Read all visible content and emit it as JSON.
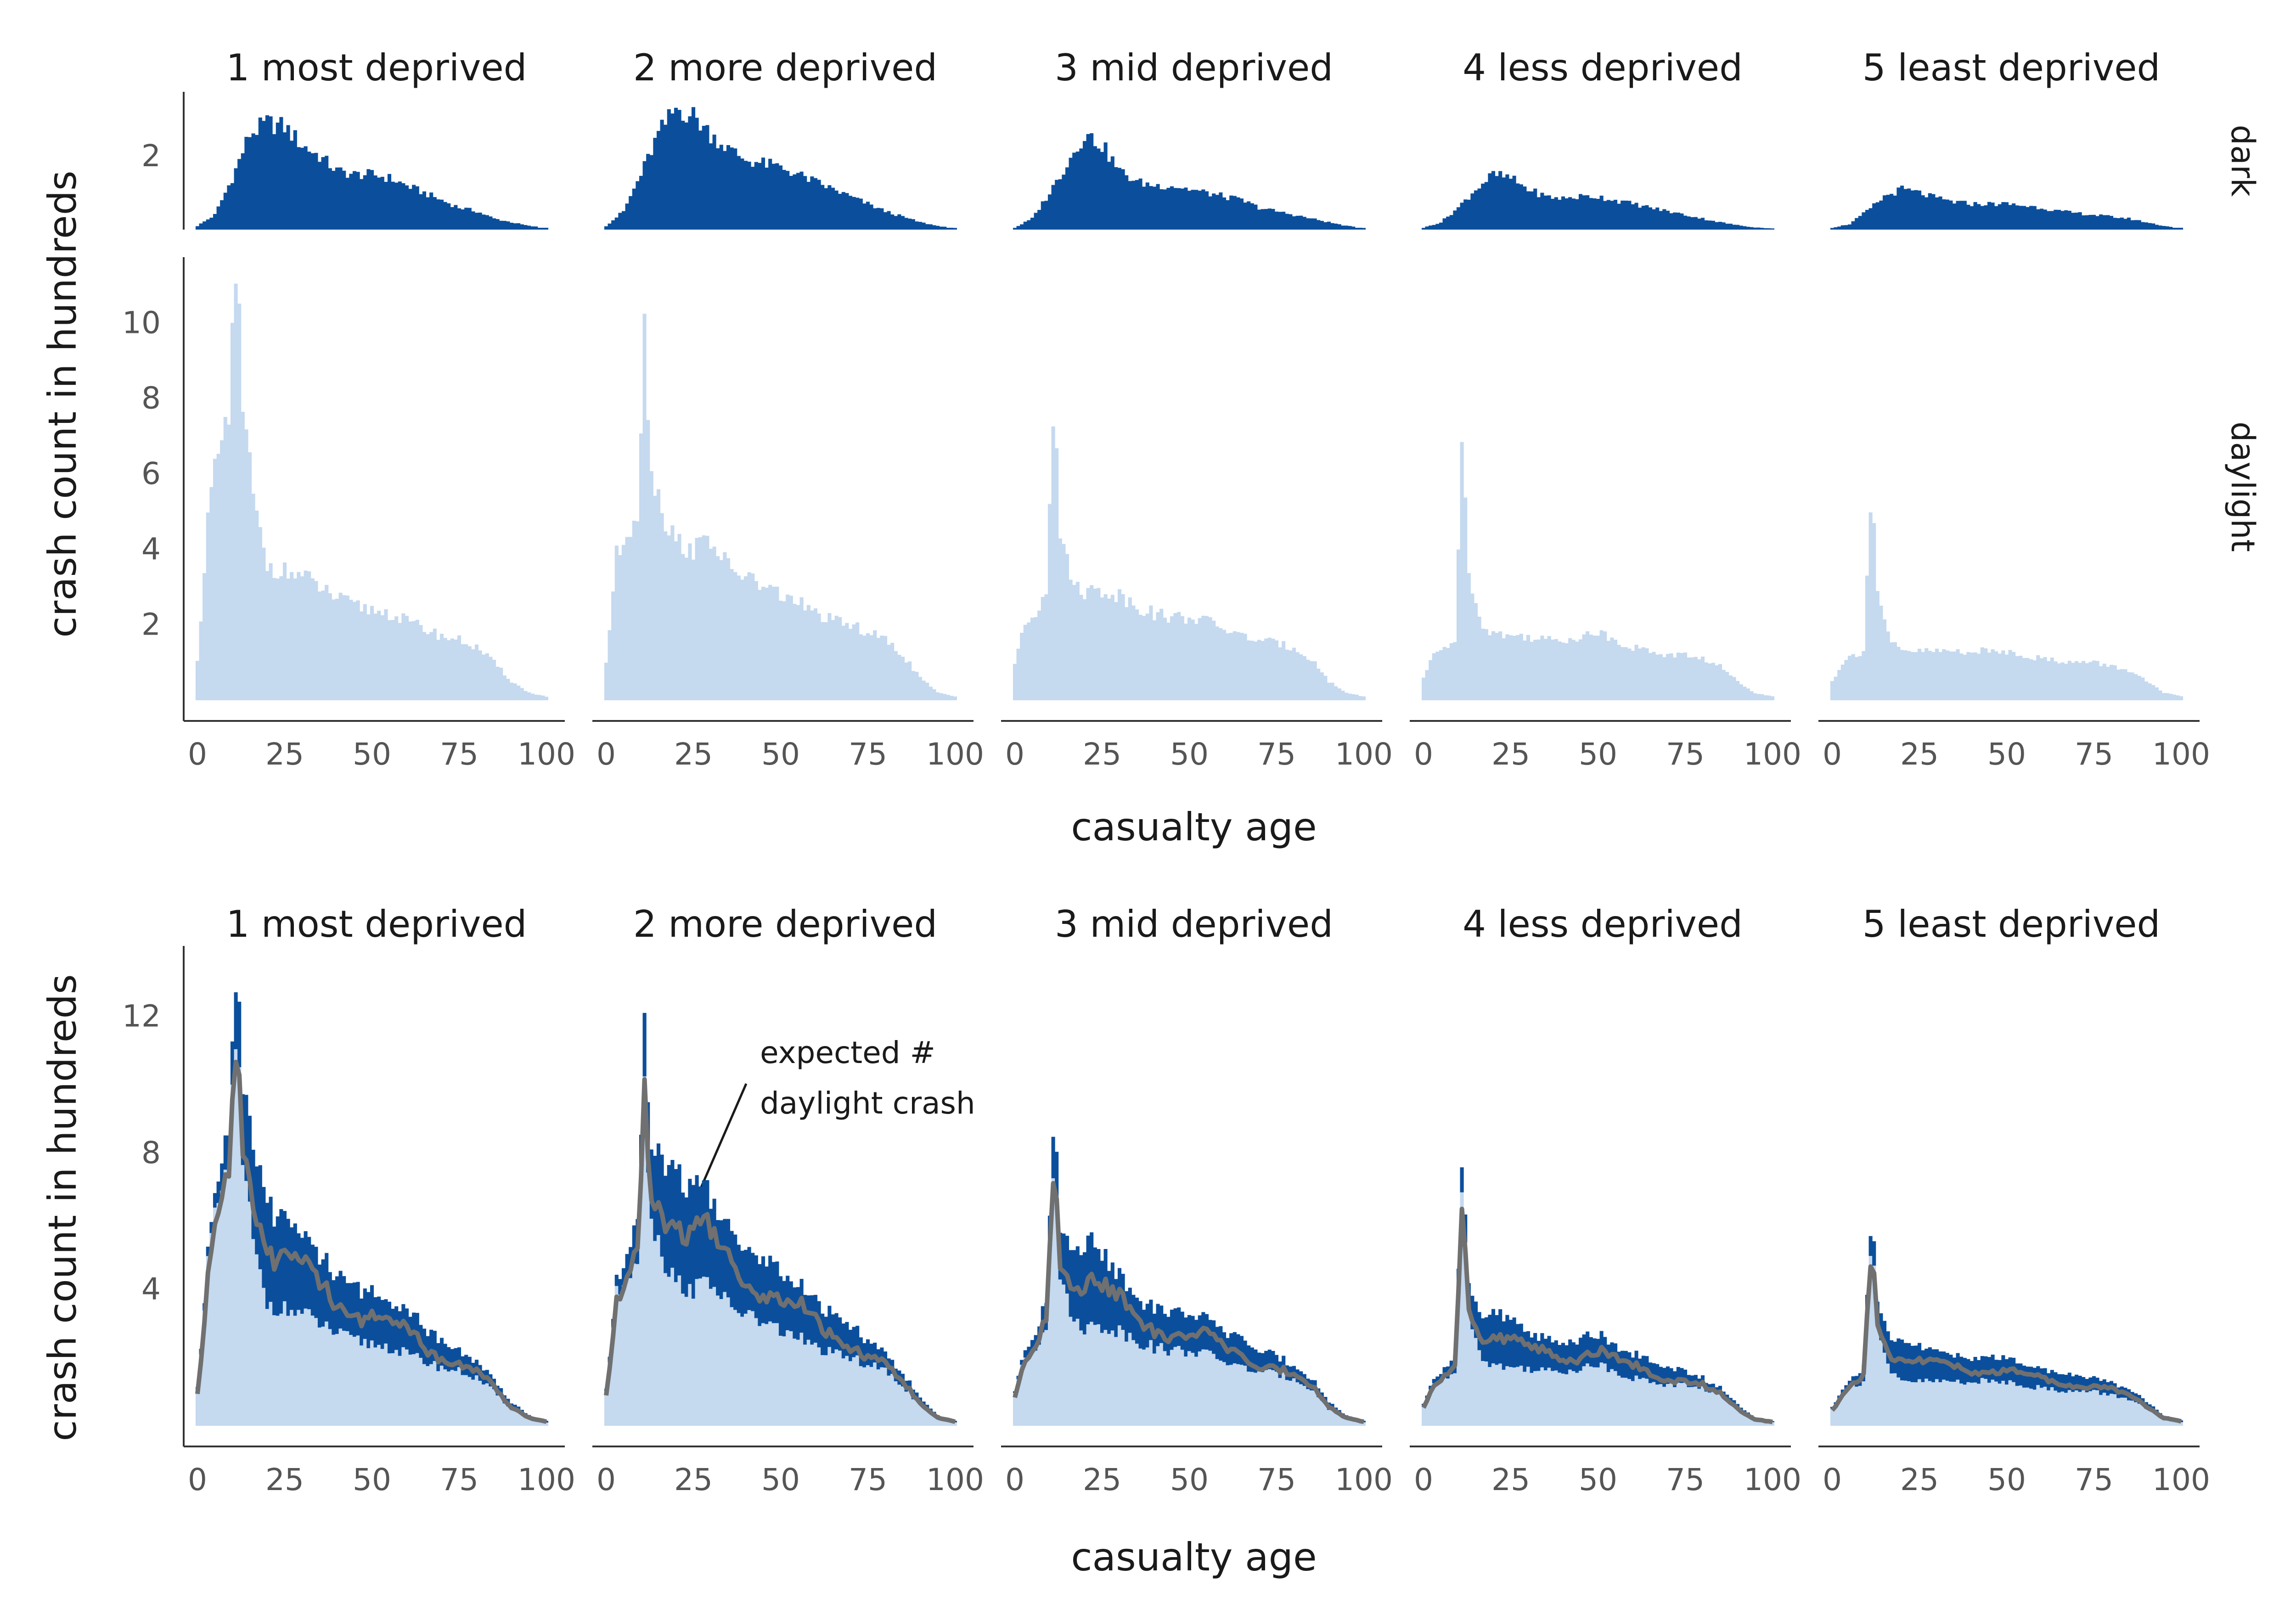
{
  "chart_data": [
    {
      "type": "bar",
      "panels": [
        "1 most deprived",
        "2 more deprived",
        "3 mid deprived",
        "4 less deprived",
        "5 least deprived"
      ],
      "rows": [
        "dark",
        "daylight"
      ],
      "xlabel": "casualty age",
      "ylabel": "crash count in hundreds",
      "xlim": [
        0,
        100
      ],
      "xticks": [
        "0",
        "25",
        "50",
        "75",
        "100"
      ],
      "ylim_dark": [
        0,
        3.5
      ],
      "yticks_dark": [
        "2"
      ],
      "ylim_daylight": [
        0,
        11.5
      ],
      "yticks_daylight": [
        "2",
        "4",
        "6",
        "8",
        "10"
      ],
      "series": [
        {
          "name": "dark",
          "color": "#0b4f9c",
          "peaks": [
            [
              [
                0,
                0.1
              ],
              [
                5,
                0.4
              ],
              [
                10,
                1.4
              ],
              [
                15,
                2.6
              ],
              [
                20,
                2.9
              ],
              [
                25,
                2.8
              ],
              [
                30,
                2.3
              ],
              [
                35,
                2.0
              ],
              [
                40,
                1.6
              ],
              [
                45,
                1.5
              ],
              [
                50,
                1.5
              ],
              [
                55,
                1.4
              ],
              [
                60,
                1.2
              ],
              [
                65,
                1.0
              ],
              [
                70,
                0.8
              ],
              [
                75,
                0.6
              ],
              [
                80,
                0.5
              ],
              [
                85,
                0.3
              ],
              [
                90,
                0.2
              ],
              [
                95,
                0.1
              ],
              [
                100,
                0.05
              ]
            ],
            [
              [
                0,
                0.1
              ],
              [
                5,
                0.5
              ],
              [
                10,
                1.5
              ],
              [
                15,
                2.6
              ],
              [
                20,
                3.3
              ],
              [
                25,
                3.1
              ],
              [
                30,
                2.6
              ],
              [
                35,
                2.2
              ],
              [
                40,
                1.9
              ],
              [
                45,
                1.8
              ],
              [
                50,
                1.7
              ],
              [
                55,
                1.5
              ],
              [
                60,
                1.3
              ],
              [
                65,
                1.1
              ],
              [
                70,
                0.9
              ],
              [
                75,
                0.7
              ],
              [
                80,
                0.5
              ],
              [
                85,
                0.35
              ],
              [
                90,
                0.2
              ],
              [
                95,
                0.1
              ],
              [
                100,
                0.05
              ]
            ],
            [
              [
                0,
                0.05
              ],
              [
                5,
                0.3
              ],
              [
                10,
                1.0
              ],
              [
                15,
                1.8
              ],
              [
                20,
                2.6
              ],
              [
                25,
                2.3
              ],
              [
                30,
                1.6
              ],
              [
                35,
                1.3
              ],
              [
                40,
                1.2
              ],
              [
                45,
                1.2
              ],
              [
                50,
                1.1
              ],
              [
                55,
                1.0
              ],
              [
                60,
                0.9
              ],
              [
                65,
                0.8
              ],
              [
                70,
                0.6
              ],
              [
                75,
                0.5
              ],
              [
                80,
                0.4
              ],
              [
                85,
                0.3
              ],
              [
                90,
                0.2
              ],
              [
                95,
                0.1
              ],
              [
                100,
                0.05
              ]
            ],
            [
              [
                0,
                0.05
              ],
              [
                5,
                0.2
              ],
              [
                10,
                0.6
              ],
              [
                15,
                1.1
              ],
              [
                20,
                1.5
              ],
              [
                25,
                1.4
              ],
              [
                30,
                1.1
              ],
              [
                35,
                0.9
              ],
              [
                40,
                0.85
              ],
              [
                45,
                0.9
              ],
              [
                50,
                0.9
              ],
              [
                55,
                0.8
              ],
              [
                60,
                0.7
              ],
              [
                65,
                0.6
              ],
              [
                70,
                0.5
              ],
              [
                75,
                0.4
              ],
              [
                80,
                0.3
              ],
              [
                85,
                0.2
              ],
              [
                90,
                0.12
              ],
              [
                95,
                0.06
              ],
              [
                100,
                0.03
              ]
            ],
            [
              [
                0,
                0.05
              ],
              [
                5,
                0.15
              ],
              [
                10,
                0.5
              ],
              [
                15,
                0.9
              ],
              [
                20,
                1.1
              ],
              [
                25,
                1.0
              ],
              [
                30,
                0.85
              ],
              [
                35,
                0.75
              ],
              [
                40,
                0.7
              ],
              [
                45,
                0.7
              ],
              [
                50,
                0.7
              ],
              [
                55,
                0.65
              ],
              [
                60,
                0.6
              ],
              [
                65,
                0.5
              ],
              [
                70,
                0.45
              ],
              [
                75,
                0.4
              ],
              [
                80,
                0.35
              ],
              [
                85,
                0.3
              ],
              [
                90,
                0.2
              ],
              [
                95,
                0.1
              ],
              [
                100,
                0.05
              ]
            ]
          ]
        },
        {
          "name": "daylight",
          "color": "#c5d9ef",
          "peaks": [
            [
              [
                0,
                1.0
              ],
              [
                3,
                4.8
              ],
              [
                6,
                6.5
              ],
              [
                9,
                7.2
              ],
              [
                10,
                10.0
              ],
              [
                11,
                11.3
              ],
              [
                12,
                10.0
              ],
              [
                13,
                7.5
              ],
              [
                15,
                6.2
              ],
              [
                17,
                4.8
              ],
              [
                20,
                3.6
              ],
              [
                25,
                3.4
              ],
              [
                30,
                3.3
              ],
              [
                35,
                3.0
              ],
              [
                40,
                2.7
              ],
              [
                45,
                2.5
              ],
              [
                50,
                2.4
              ],
              [
                55,
                2.3
              ],
              [
                60,
                2.1
              ],
              [
                65,
                1.9
              ],
              [
                70,
                1.7
              ],
              [
                75,
                1.6
              ],
              [
                80,
                1.4
              ],
              [
                85,
                1.0
              ],
              [
                90,
                0.5
              ],
              [
                95,
                0.2
              ],
              [
                100,
                0.1
              ]
            ],
            [
              [
                0,
                1.0
              ],
              [
                3,
                3.8
              ],
              [
                6,
                4.5
              ],
              [
                9,
                5.0
              ],
              [
                10,
                7.5
              ],
              [
                11,
                9.8
              ],
              [
                12,
                8.0
              ],
              [
                13,
                6.0
              ],
              [
                15,
                5.5
              ],
              [
                17,
                4.8
              ],
              [
                20,
                4.2
              ],
              [
                25,
                4.0
              ],
              [
                30,
                4.3
              ],
              [
                35,
                3.5
              ],
              [
                40,
                3.3
              ],
              [
                45,
                3.0
              ],
              [
                50,
                2.8
              ],
              [
                55,
                2.6
              ],
              [
                60,
                2.3
              ],
              [
                65,
                2.1
              ],
              [
                70,
                2.0
              ],
              [
                75,
                1.8
              ],
              [
                80,
                1.6
              ],
              [
                85,
                1.2
              ],
              [
                90,
                0.6
              ],
              [
                95,
                0.2
              ],
              [
                100,
                0.1
              ]
            ],
            [
              [
                0,
                1.0
              ],
              [
                3,
                2.0
              ],
              [
                6,
                2.3
              ],
              [
                9,
                3.0
              ],
              [
                10,
                5.5
              ],
              [
                11,
                7.8
              ],
              [
                12,
                7.0
              ],
              [
                13,
                4.5
              ],
              [
                15,
                3.6
              ],
              [
                17,
                3.1
              ],
              [
                20,
                2.9
              ],
              [
                25,
                2.9
              ],
              [
                30,
                2.8
              ],
              [
                35,
                2.5
              ],
              [
                40,
                2.3
              ],
              [
                45,
                2.2
              ],
              [
                50,
                2.2
              ],
              [
                55,
                2.1
              ],
              [
                60,
                1.9
              ],
              [
                65,
                1.7
              ],
              [
                70,
                1.6
              ],
              [
                75,
                1.5
              ],
              [
                80,
                1.4
              ],
              [
                85,
                1.1
              ],
              [
                90,
                0.5
              ],
              [
                95,
                0.2
              ],
              [
                100,
                0.1
              ]
            ],
            [
              [
                0,
                0.6
              ],
              [
                3,
                1.2
              ],
              [
                6,
                1.4
              ],
              [
                9,
                1.6
              ],
              [
                10,
                4.0
              ],
              [
                11,
                6.4
              ],
              [
                12,
                5.8
              ],
              [
                13,
                3.6
              ],
              [
                15,
                2.5
              ],
              [
                17,
                2.0
              ],
              [
                20,
                1.8
              ],
              [
                25,
                1.7
              ],
              [
                30,
                1.7
              ],
              [
                35,
                1.6
              ],
              [
                40,
                1.6
              ],
              [
                45,
                1.7
              ],
              [
                50,
                1.8
              ],
              [
                55,
                1.6
              ],
              [
                60,
                1.4
              ],
              [
                65,
                1.3
              ],
              [
                70,
                1.2
              ],
              [
                75,
                1.2
              ],
              [
                80,
                1.1
              ],
              [
                85,
                0.9
              ],
              [
                90,
                0.5
              ],
              [
                95,
                0.2
              ],
              [
                100,
                0.1
              ]
            ],
            [
              [
                0,
                0.5
              ],
              [
                3,
                1.0
              ],
              [
                6,
                1.2
              ],
              [
                9,
                1.3
              ],
              [
                10,
                3.5
              ],
              [
                11,
                4.9
              ],
              [
                12,
                4.6
              ],
              [
                13,
                3.0
              ],
              [
                15,
                2.0
              ],
              [
                17,
                1.5
              ],
              [
                20,
                1.3
              ],
              [
                25,
                1.3
              ],
              [
                30,
                1.3
              ],
              [
                35,
                1.3
              ],
              [
                40,
                1.3
              ],
              [
                45,
                1.3
              ],
              [
                50,
                1.3
              ],
              [
                55,
                1.2
              ],
              [
                60,
                1.1
              ],
              [
                65,
                1.05
              ],
              [
                70,
                1.0
              ],
              [
                75,
                1.0
              ],
              [
                80,
                0.9
              ],
              [
                85,
                0.8
              ],
              [
                90,
                0.5
              ],
              [
                95,
                0.2
              ],
              [
                100,
                0.1
              ]
            ]
          ]
        }
      ]
    },
    {
      "type": "bar",
      "panels": [
        "1 most deprived",
        "2 more deprived",
        "3 mid deprived",
        "4 less deprived",
        "5 least deprived"
      ],
      "xlabel": "casualty age",
      "ylabel": "crash count in hundreds",
      "xlim": [
        0,
        100
      ],
      "xticks": [
        "0",
        "25",
        "50",
        "75",
        "100"
      ],
      "ylim": [
        0,
        13.8
      ],
      "yticks": [
        "4",
        "8",
        "12"
      ],
      "annotation": [
        "expected #",
        "daylight crash"
      ],
      "series": [
        {
          "name": "dark",
          "color": "#0b4f9c"
        },
        {
          "name": "daylight",
          "color": "#c5d9ef"
        },
        {
          "name": "expected # daylight crash",
          "color": "#707070",
          "type": "line"
        }
      ]
    }
  ]
}
